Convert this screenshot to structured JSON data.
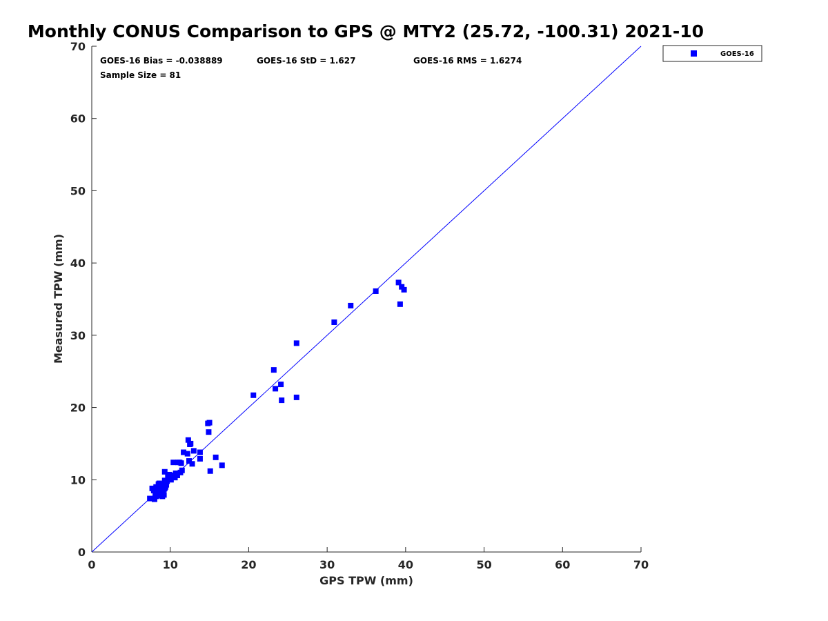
{
  "chart_data": {
    "type": "scatter",
    "title": "Monthly CONUS Comparison to GPS @ MTY2 (25.72, -100.31) 2021-10",
    "xlabel": "GPS TPW (mm)",
    "ylabel": "Measured TPW (mm)",
    "xlim": [
      0,
      70
    ],
    "ylim": [
      0,
      70
    ],
    "xticks": [
      "0",
      "10",
      "20",
      "30",
      "40",
      "50",
      "60",
      "70"
    ],
    "yticks": [
      "0",
      "10",
      "20",
      "30",
      "40",
      "50",
      "60",
      "70"
    ],
    "grid": false,
    "legend_position": "top-right outside",
    "reference_line": {
      "x": [
        0,
        70
      ],
      "y": [
        0,
        70
      ],
      "color": "#0000ff"
    },
    "stats": {
      "bias": "GOES-16 Bias = -0.038889",
      "std": "GOES-16 StD = 1.627",
      "rms": "GOES-16 RMS = 1.6274",
      "sample_size": "Sample Size = 81"
    },
    "series": [
      {
        "name": "GOES-16",
        "color": "#0000ff",
        "marker": "square",
        "x": [
          7.4,
          7.7,
          8.0,
          7.9,
          8.2,
          8.3,
          8.5,
          8.6,
          8.8,
          8.9,
          9.0,
          9.1,
          9.2,
          9.3,
          9.4,
          9.5,
          8.1,
          8.4,
          8.7,
          9.0,
          9.2,
          9.4,
          9.6,
          9.8,
          8.2,
          8.6,
          8.9,
          9.3,
          9.7,
          10.0,
          10.2,
          10.4,
          10.6,
          10.8,
          11.0,
          9.3,
          10.5,
          10.9,
          11.2,
          11.5,
          11.4,
          11.7,
          12.2,
          12.4,
          12.6,
          12.8,
          12.3,
          12.5,
          13.0,
          13.8,
          13.8,
          14.8,
          15.0,
          14.9,
          15.1,
          15.8,
          16.6,
          20.6,
          23.2,
          23.4,
          24.1,
          24.2,
          26.1,
          26.1,
          30.9,
          33.0,
          36.2,
          39.1,
          39.3,
          39.5,
          39.8,
          8.3,
          8.8,
          9.1,
          9.5,
          10.1,
          10.7,
          11.3,
          8.5,
          9.0,
          9.9
        ],
        "y": [
          7.4,
          8.8,
          7.3,
          8.5,
          7.7,
          8.9,
          8.1,
          9.3,
          7.8,
          8.6,
          8.4,
          9.2,
          7.9,
          8.8,
          9.0,
          9.3,
          8.0,
          8.2,
          8.9,
          7.7,
          8.7,
          9.6,
          9.8,
          10.3,
          9.0,
          9.5,
          9.4,
          9.9,
          10.4,
          10.1,
          10.6,
          12.4,
          10.3,
          10.7,
          12.4,
          11.1,
          10.5,
          10.6,
          12.4,
          11.3,
          12.3,
          13.8,
          13.6,
          12.6,
          15.0,
          12.2,
          15.5,
          14.9,
          14.0,
          13.8,
          12.9,
          17.8,
          17.9,
          16.6,
          11.2,
          13.1,
          12.0,
          21.7,
          25.2,
          22.6,
          23.2,
          21.0,
          28.9,
          21.4,
          31.8,
          34.1,
          36.1,
          37.3,
          34.3,
          36.7,
          36.3,
          8.1,
          8.5,
          8.3,
          9.7,
          10.0,
          10.9,
          11.0,
          9.4,
          8.0,
          10.7
        ]
      }
    ]
  },
  "legend": {
    "entries": [
      "GOES-16"
    ]
  }
}
